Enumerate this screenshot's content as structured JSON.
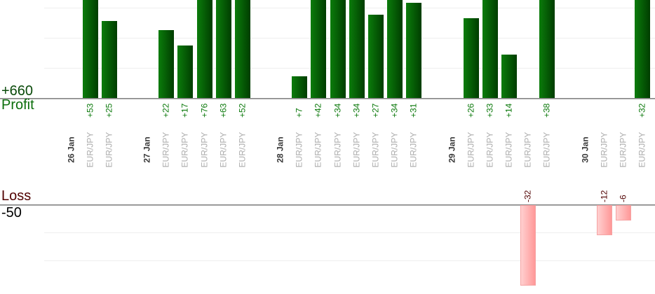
{
  "labels": {
    "profit_total": "+660",
    "profit_axis": "Profit",
    "loss_axis": "Loss",
    "loss_total": "-50"
  },
  "colors": {
    "profit_total_text": "#0a4a0a",
    "profit_axis_text": "#0b6e0b",
    "loss_axis_text": "#500000",
    "loss_total_text": "#000000",
    "value_label_positive": "#0a780a",
    "value_label_negative": "#500000",
    "date_label": "#3a3a3a",
    "symbol_label": "#adadad",
    "bar_green_light": "#0b7c0b",
    "bar_green_dark": "#003d00",
    "bar_pink_light": "#ffd0d0",
    "bar_pink_dark": "#ff9898",
    "bar_pink_border": "#f5a3a3",
    "axis_line": "#6d6d6d",
    "gridline": "#efefef"
  },
  "chart_data": {
    "type": "bar",
    "title": "",
    "description": "Per-trade profit and loss grouped by day; green bars above the Profit baseline, pink bars below the Loss baseline; top of chart cropped",
    "xlabel": "",
    "ylabel_top": "Profit",
    "ylabel_bottom": "Loss",
    "grid": true,
    "legend": "none",
    "value_prefix_positive": "+",
    "totals": {
      "profit_sum_label": "+660",
      "loss_sum_label": "-50"
    },
    "groups": [
      {
        "date": "26 Jan",
        "trades": [
          {
            "symbol": "EUR/JPY",
            "value": 53
          },
          {
            "symbol": "EUR/JPY",
            "value": 25
          }
        ]
      },
      {
        "date": "27 Jan",
        "trades": [
          {
            "symbol": "EUR/JPY",
            "value": 22
          },
          {
            "symbol": "EUR/JPY",
            "value": 17
          },
          {
            "symbol": "EUR/JPY",
            "value": 76
          },
          {
            "symbol": "EUR/JPY",
            "value": 63
          },
          {
            "symbol": "EUR/JPY",
            "value": 52
          }
        ]
      },
      {
        "date": "28 Jan",
        "trades": [
          {
            "symbol": "EUR/JPY",
            "value": 7
          },
          {
            "symbol": "EUR/JPY",
            "value": 42
          },
          {
            "symbol": "EUR/JPY",
            "value": 34
          },
          {
            "symbol": "EUR/JPY",
            "value": 34
          },
          {
            "symbol": "EUR/JPY",
            "value": 27
          },
          {
            "symbol": "EUR/JPY",
            "value": 34
          },
          {
            "symbol": "EUR/JPY",
            "value": 31
          }
        ]
      },
      {
        "date": "29 Jan",
        "trades": [
          {
            "symbol": "EUR/JPY",
            "value": 26
          },
          {
            "symbol": "EUR/JPY",
            "value": 33
          },
          {
            "symbol": "EUR/JPY",
            "value": 14
          },
          {
            "symbol": "EUR/JPY",
            "value": -32
          },
          {
            "symbol": "EUR/JPY",
            "value": 38
          }
        ]
      },
      {
        "date": "30 Jan",
        "trades": [
          {
            "symbol": "EUR/JPY",
            "value": -12
          },
          {
            "symbol": "EUR/JPY",
            "value": -6
          },
          {
            "symbol": "EUR/JPY",
            "value": 32
          }
        ]
      }
    ]
  }
}
